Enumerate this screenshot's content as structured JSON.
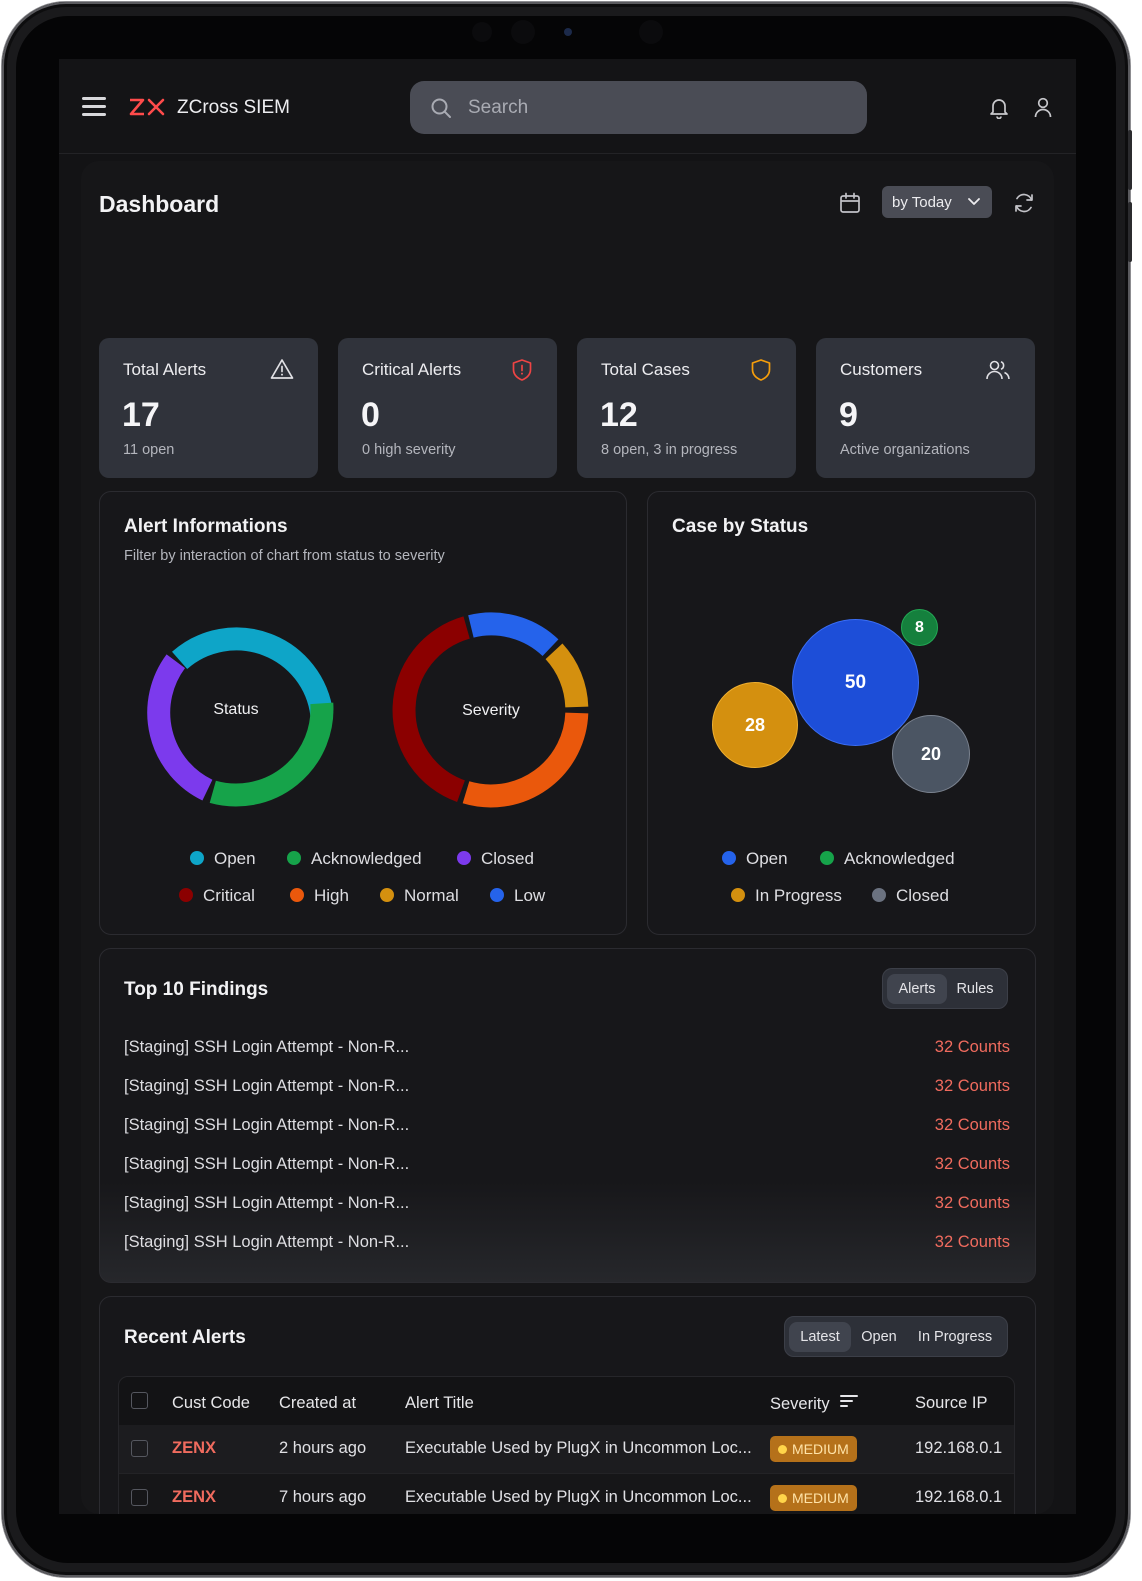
{
  "app": {
    "brand": "ZCross SIEM",
    "logo_text": "ZX",
    "accent": "#ff4b4b"
  },
  "search": {
    "placeholder": "Search"
  },
  "dashboard": {
    "title": "Dashboard",
    "period_label": "by Today",
    "cards": [
      {
        "label": "Total Alerts",
        "value": "17",
        "sub": "11 open",
        "icon": "warning-triangle-icon"
      },
      {
        "label": "Critical Alerts",
        "value": "0",
        "sub": "0 high severity",
        "icon": "shield-alert-icon"
      },
      {
        "label": "Total Cases",
        "value": "12",
        "sub": "8 open, 3 in progress",
        "icon": "shield-icon"
      },
      {
        "label": "Customers",
        "value": "9",
        "sub": "Active organizations",
        "icon": "users-icon"
      }
    ]
  },
  "alert_info": {
    "title": "Alert Informations",
    "subtitle": "Filter by interaction of chart from status to severity",
    "status_label": "Status",
    "severity_label": "Severity",
    "status_legend": [
      {
        "label": "Open",
        "color": "#0ea5c8"
      },
      {
        "label": "Acknowledged",
        "color": "#16a34a"
      },
      {
        "label": "Closed",
        "color": "#7c3aed"
      }
    ],
    "severity_legend": [
      {
        "label": "Critical",
        "color": "#8b0000"
      },
      {
        "label": "High",
        "color": "#ea580c"
      },
      {
        "label": "Normal",
        "color": "#d4900f"
      },
      {
        "label": "Low",
        "color": "#2563eb"
      }
    ]
  },
  "case_status": {
    "title": "Case by Status",
    "bubbles": [
      {
        "label": "50",
        "value": 50,
        "color": "#1d4ed8"
      },
      {
        "label": "28",
        "value": 28,
        "color": "#d4900f"
      },
      {
        "label": "20",
        "value": 20,
        "color": "#4b5563"
      },
      {
        "label": "8",
        "value": 8,
        "color": "#15803d"
      }
    ],
    "legend": [
      {
        "label": "Open",
        "color": "#2563eb"
      },
      {
        "label": "Acknowledged",
        "color": "#16a34a"
      },
      {
        "label": "In Progress",
        "color": "#d4900f"
      },
      {
        "label": "Closed",
        "color": "#6b7280"
      }
    ]
  },
  "findings": {
    "title": "Top 10 Findings",
    "tabs": [
      "Alerts",
      "Rules"
    ],
    "items": [
      {
        "title": "[Staging] SSH Login Attempt - Non-R...",
        "count": "32 Counts"
      },
      {
        "title": "[Staging] SSH Login Attempt - Non-R...",
        "count": "32 Counts"
      },
      {
        "title": "[Staging] SSH Login Attempt - Non-R...",
        "count": "32 Counts"
      },
      {
        "title": "[Staging] SSH Login Attempt - Non-R...",
        "count": "32 Counts"
      },
      {
        "title": "[Staging] SSH Login Attempt - Non-R...",
        "count": "32 Counts"
      },
      {
        "title": "[Staging] SSH Login Attempt - Non-R...",
        "count": "32 Counts"
      }
    ]
  },
  "recent": {
    "title": "Recent Alerts",
    "tabs": [
      "Latest",
      "Open",
      "In Progress"
    ],
    "columns": [
      "Cust Code",
      "Created at",
      "Alert Title",
      "Severity",
      "Source IP"
    ],
    "rows": [
      {
        "cust": "ZENX",
        "created": "2 hours ago",
        "title": "Executable Used by PlugX in Uncommon Loc...",
        "severity": "MEDIUM",
        "ip": "192.168.0.1"
      },
      {
        "cust": "ZENX",
        "created": "7 hours ago",
        "title": "Executable Used by PlugX in Uncommon Loc...",
        "severity": "MEDIUM",
        "ip": "192.168.0.1"
      }
    ]
  }
}
